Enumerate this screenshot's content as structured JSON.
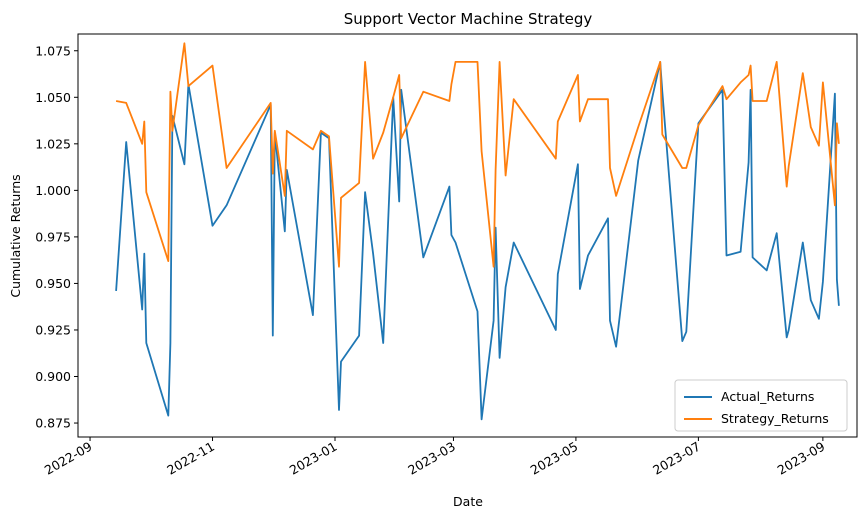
{
  "chart_data": {
    "type": "line",
    "title": "Support Vector Machine Strategy",
    "xlabel": "Date",
    "ylabel": "Cumulative Returns",
    "xlim": [
      "2022-08-26",
      "2023-09-18"
    ],
    "ylim": [
      0.8675,
      1.084
    ],
    "x_ticks": [
      "2022-09-01",
      "2022-11-01",
      "2023-01-01",
      "2023-03-01",
      "2023-05-01",
      "2023-07-01",
      "2023-09-01"
    ],
    "x_tick_labels": [
      "2022-09",
      "2022-11",
      "2023-01",
      "2023-03",
      "2023-05",
      "2023-07",
      "2023-09"
    ],
    "y_ticks": [
      0.875,
      0.9,
      0.925,
      0.95,
      0.975,
      1.0,
      1.025,
      1.05,
      1.075
    ],
    "y_tick_labels": [
      "0.875",
      "0.900",
      "0.925",
      "0.950",
      "0.975",
      "1.000",
      "1.025",
      "1.050",
      "1.075"
    ],
    "grid": false,
    "legend_position": "lower-right",
    "x": [
      "2022-09-14",
      "2022-09-19",
      "2022-09-27",
      "2022-09-28",
      "2022-09-29",
      "2022-10-10",
      "2022-10-11",
      "2022-10-12",
      "2022-10-18",
      "2022-10-20",
      "2022-11-01",
      "2022-11-08",
      "2022-11-30",
      "2022-12-01",
      "2022-12-02",
      "2022-12-07",
      "2022-12-08",
      "2022-12-21",
      "2022-12-25",
      "2022-12-29",
      "2023-01-03",
      "2023-01-04",
      "2023-01-13",
      "2023-01-16",
      "2023-01-20",
      "2023-01-25",
      "2023-01-30",
      "2023-02-02",
      "2023-02-03",
      "2023-02-14",
      "2023-02-27",
      "2023-02-28",
      "2023-03-02",
      "2023-03-13",
      "2023-03-15",
      "2023-03-21",
      "2023-03-22",
      "2023-03-24",
      "2023-03-27",
      "2023-03-31",
      "2023-04-21",
      "2023-04-22",
      "2023-05-02",
      "2023-05-03",
      "2023-05-07",
      "2023-05-17",
      "2023-05-18",
      "2023-05-21",
      "2023-06-01",
      "2023-06-12",
      "2023-06-13",
      "2023-06-23",
      "2023-06-25",
      "2023-07-01",
      "2023-07-13",
      "2023-07-15",
      "2023-07-22",
      "2023-07-26",
      "2023-07-27",
      "2023-07-28",
      "2023-08-04",
      "2023-08-09",
      "2023-08-14",
      "2023-08-15",
      "2023-08-22",
      "2023-08-26",
      "2023-08-30",
      "2023-09-01",
      "2023-09-07",
      "2023-09-08",
      "2023-09-09"
    ],
    "series": [
      {
        "name": "Actual_Returns",
        "color": "#1f77b4",
        "values": [
          0.946,
          1.026,
          0.936,
          0.966,
          0.918,
          0.879,
          0.918,
          1.04,
          1.014,
          1.057,
          0.981,
          0.992,
          1.046,
          0.922,
          1.031,
          0.978,
          1.011,
          0.933,
          1.031,
          1.028,
          0.882,
          0.908,
          0.922,
          0.999,
          0.966,
          0.918,
          1.05,
          0.994,
          1.054,
          0.964,
          1.002,
          0.976,
          0.972,
          0.935,
          0.877,
          0.93,
          0.98,
          0.91,
          0.948,
          0.972,
          0.925,
          0.955,
          1.014,
          0.947,
          0.965,
          0.985,
          0.93,
          0.916,
          1.016,
          1.069,
          1.053,
          0.919,
          0.924,
          1.036,
          1.054,
          0.965,
          0.967,
          1.015,
          1.054,
          0.964,
          0.957,
          0.977,
          0.921,
          0.925,
          0.972,
          0.941,
          0.931,
          0.951,
          1.052,
          0.952,
          0.938
        ]
      },
      {
        "name": "Strategy_Returns",
        "color": "#ff7f0e",
        "values": [
          1.048,
          1.047,
          1.025,
          1.037,
          0.999,
          0.962,
          1.053,
          1.032,
          1.079,
          1.056,
          1.067,
          1.012,
          1.047,
          1.009,
          1.032,
          0.997,
          1.032,
          1.022,
          1.032,
          1.029,
          0.959,
          0.996,
          1.004,
          1.069,
          1.017,
          1.031,
          1.05,
          1.062,
          1.028,
          1.053,
          1.048,
          1.057,
          1.069,
          1.069,
          1.021,
          0.959,
          1.011,
          1.069,
          1.008,
          1.049,
          1.017,
          1.037,
          1.062,
          1.037,
          1.049,
          1.049,
          1.012,
          0.997,
          1.034,
          1.069,
          1.03,
          1.012,
          1.012,
          1.035,
          1.056,
          1.049,
          1.058,
          1.062,
          1.067,
          1.048,
          1.048,
          1.069,
          1.002,
          1.013,
          1.063,
          1.034,
          1.024,
          1.058,
          0.992,
          1.036,
          1.025
        ]
      }
    ]
  }
}
